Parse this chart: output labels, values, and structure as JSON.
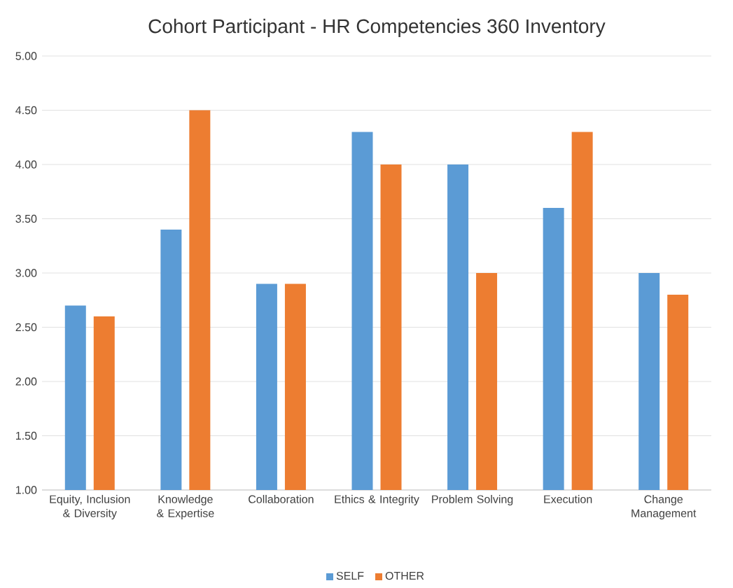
{
  "chart_data": {
    "type": "bar",
    "title": "Cohort Participant - HR Competencies 360 Inventory",
    "categories": [
      "Equity, Inclusion & Diversity",
      "Knowledge & Expertise",
      "Collaboration",
      "Ethics & Integrity",
      "Problem Solving",
      "Execution",
      "Change Management"
    ],
    "series": [
      {
        "name": "SELF",
        "color": "#5b9bd5",
        "values": [
          2.7,
          3.4,
          2.9,
          4.3,
          4.0,
          3.6,
          3.0
        ]
      },
      {
        "name": "OTHER",
        "color": "#ed7d31",
        "values": [
          2.6,
          4.5,
          2.9,
          4.0,
          3.0,
          4.3,
          2.8
        ]
      }
    ],
    "ylim": [
      1,
      5
    ],
    "yticks": [
      {
        "value": 1,
        "label": "1.00"
      },
      {
        "value": 1.5,
        "label": "1.50"
      },
      {
        "value": 2,
        "label": "2.00"
      },
      {
        "value": 2.5,
        "label": "2.50"
      },
      {
        "value": 3,
        "label": "3.00"
      },
      {
        "value": 3.5,
        "label": "3.50"
      },
      {
        "value": 4,
        "label": "4.00"
      },
      {
        "value": 4.5,
        "label": "4.50"
      },
      {
        "value": 5,
        "label": "5.00"
      }
    ],
    "grid": "y",
    "legend": "bottom"
  }
}
